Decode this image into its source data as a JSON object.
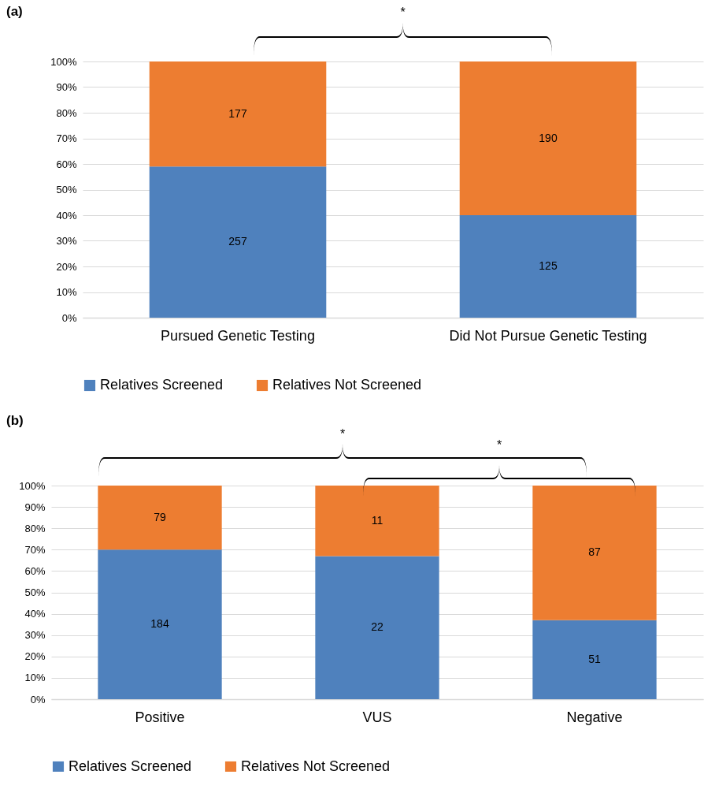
{
  "chart_data": [
    {
      "type": "bar",
      "title": "(a)",
      "stacked": true,
      "categories": [
        "Pursued Genetic Testing",
        "Did Not Pursue Genetic Testing"
      ],
      "series": [
        {
          "name": "Relatives Screened",
          "color": "#4f81bd",
          "values": [
            59,
            40
          ]
        },
        {
          "name": "Relatives Not Screened",
          "color": "#ed7d31",
          "values": [
            41,
            60
          ]
        }
      ],
      "ylim": [
        0,
        100
      ],
      "yticks": [
        {
          "value": 0,
          "label": "0%"
        },
        {
          "value": 10,
          "label": "10%"
        },
        {
          "value": 20,
          "label": "20%"
        },
        {
          "value": 30,
          "label": "30%"
        },
        {
          "value": 40,
          "label": "40%"
        },
        {
          "value": 50,
          "label": "50%"
        },
        {
          "value": 60,
          "label": "60%"
        },
        {
          "value": 70,
          "label": "70%"
        },
        {
          "value": 80,
          "label": "80%"
        },
        {
          "value": 90,
          "label": "90%"
        },
        {
          "value": 100,
          "label": "100%"
        }
      ],
      "grid": "y",
      "legend": "bottom",
      "annotations": [
        "*",
        "257",
        "125",
        "177",
        "190"
      ]
    },
    {
      "type": "bar",
      "title": "(b)",
      "stacked": true,
      "categories": [
        "Positive",
        "VUS",
        "Negative"
      ],
      "series": [
        {
          "name": "Relatives Screened",
          "color": "#4f81bd",
          "values": [
            70,
            67,
            37
          ]
        },
        {
          "name": "Relatives Not Screened",
          "color": "#ed7d31",
          "values": [
            30,
            33,
            63
          ]
        }
      ],
      "ylim": [
        0,
        100
      ],
      "yticks": [
        {
          "value": 0,
          "label": "0%"
        },
        {
          "value": 10,
          "label": "10%"
        },
        {
          "value": 20,
          "label": "20%"
        },
        {
          "value": 30,
          "label": "30%"
        },
        {
          "value": 40,
          "label": "40%"
        },
        {
          "value": 50,
          "label": "50%"
        },
        {
          "value": 60,
          "label": "60%"
        },
        {
          "value": 70,
          "label": "70%"
        },
        {
          "value": 80,
          "label": "80%"
        },
        {
          "value": 90,
          "label": "90%"
        },
        {
          "value": 100,
          "label": "100%"
        }
      ],
      "grid": "y",
      "legend": "bottom",
      "annotations": [
        "*",
        "*",
        "184",
        "22",
        "51",
        "79",
        "11",
        "87"
      ]
    }
  ]
}
